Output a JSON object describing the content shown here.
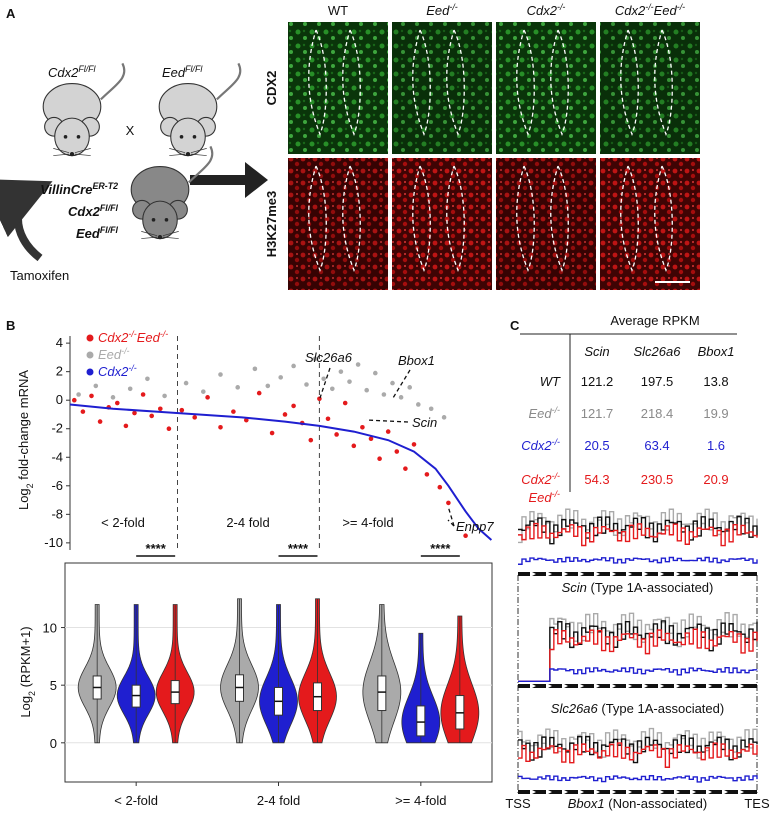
{
  "panel_a": {
    "label": "A",
    "parents": [
      [
        {
          "text": "Cdx2",
          "italic": true
        },
        {
          "text": "Fl/Fl",
          "italic": true,
          "sup": true
        }
      ],
      [
        {
          "text": "Eed",
          "italic": true
        },
        {
          "text": "Fl/Fl",
          "italic": true,
          "sup": true
        }
      ]
    ],
    "cross": "X",
    "offspring": [
      [
        {
          "text": "VillinCre",
          "italic": true
        },
        {
          "text": "ER-T2",
          "italic": true,
          "sup": true
        }
      ],
      [
        {
          "text": "Cdx2",
          "italic": true
        },
        {
          "text": "Fl/Fl",
          "italic": true,
          "sup": true
        }
      ],
      [
        {
          "text": "Eed",
          "italic": true
        },
        {
          "text": "Fl/Fl",
          "italic": true,
          "sup": true
        }
      ]
    ],
    "treatment": "Tamoxifen",
    "columns": [
      [
        {
          "text": "WT"
        }
      ],
      [
        {
          "text": "Eed",
          "italic": true
        },
        {
          "text": "-/-",
          "italic": true,
          "sup": true
        }
      ],
      [
        {
          "text": "Cdx2",
          "italic": true
        },
        {
          "text": "-/-",
          "italic": true,
          "sup": true
        }
      ],
      [
        {
          "text": "Cdx2",
          "italic": true
        },
        {
          "text": "-/-",
          "italic": true,
          "sup": true
        },
        {
          "text": "Eed",
          "italic": true
        },
        {
          "text": "-/-",
          "italic": true,
          "sup": true
        }
      ]
    ],
    "rows": [
      "CDX2",
      "H3K27me3"
    ]
  },
  "panel_b": {
    "label": "B",
    "chart_data": [
      {
        "type": "scatter",
        "ylabel": [
          {
            "text": "Log"
          },
          {
            "text": "2",
            "sub": true
          },
          {
            "text": " fold-change mRNA"
          }
        ],
        "xlim": [
          0,
          100
        ],
        "ylim": [
          -10.5,
          4.5
        ],
        "yticks": [
          4,
          2,
          0,
          -2,
          -4,
          -6,
          -8,
          -10
        ],
        "dividers": [
          25,
          58
        ],
        "regions": [
          "< 2-fold",
          "2-4 fold",
          ">= 4-fold"
        ],
        "annotations": [
          "Slc26a6",
          "Bbox1",
          "Scin",
          "Enpp7"
        ],
        "series": [
          {
            "name": [
              {
                "text": "Cdx2",
                "italic": true
              },
              {
                "text": "-/-",
                "italic": true,
                "sup": true
              },
              {
                "text": "Eed",
                "italic": true
              },
              {
                "text": "-/-",
                "italic": true,
                "sup": true
              }
            ],
            "color": "#e41a1c",
            "mode": "points",
            "x": [
              1,
              3,
              5,
              7,
              9,
              11,
              13,
              15,
              17,
              19,
              21,
              23,
              26,
              29,
              32,
              35,
              38,
              41,
              44,
              47,
              50,
              52,
              54,
              56,
              58,
              60,
              62,
              64,
              66,
              68,
              70,
              72,
              74,
              76,
              78,
              80,
              83,
              86,
              88,
              92
            ],
            "values": [
              0,
              -0.8,
              0.3,
              -1.5,
              -0.5,
              -0.2,
              -1.8,
              -0.9,
              0.4,
              -1.1,
              -0.6,
              -2,
              -0.7,
              -1.2,
              0.2,
              -1.9,
              -0.8,
              -1.4,
              0.5,
              -2.3,
              -1,
              -0.4,
              -1.6,
              -2.8,
              0.1,
              -1.3,
              -2.4,
              -0.2,
              -3.2,
              -1.9,
              -2.7,
              -4.1,
              -2.2,
              -3.6,
              -4.8,
              -3.1,
              -5.2,
              -6.1,
              -7.2,
              -9.5
            ]
          },
          {
            "name": [
              {
                "text": "Eed",
                "italic": true
              },
              {
                "text": "-/-",
                "italic": true,
                "sup": true
              }
            ],
            "color": "#aaaaaa",
            "mode": "points",
            "x": [
              2,
              6,
              10,
              14,
              18,
              22,
              27,
              31,
              35,
              39,
              43,
              46,
              49,
              52,
              55,
              57,
              59,
              61,
              63,
              65,
              67,
              69,
              71,
              73,
              75,
              77,
              79,
              81,
              84,
              87
            ],
            "values": [
              0.4,
              1,
              0.2,
              0.8,
              1.5,
              0.3,
              1.2,
              0.6,
              1.8,
              0.9,
              2.2,
              1,
              1.6,
              2.4,
              1.1,
              2.9,
              1.5,
              0.8,
              2,
              1.3,
              2.5,
              0.7,
              1.9,
              0.4,
              1.2,
              0.2,
              0.9,
              -0.3,
              -0.6,
              -1.2
            ]
          },
          {
            "name": [
              {
                "text": "Cdx2",
                "italic": true
              },
              {
                "text": "-/-",
                "italic": true,
                "sup": true
              }
            ],
            "color": "#1f1fd0",
            "mode": "line",
            "x": [
              0,
              10,
              20,
              30,
              40,
              50,
              58,
              66,
              74,
              80,
              85,
              88,
              92,
              95,
              98
            ],
            "values": [
              -0.3,
              -0.6,
              -0.8,
              -1,
              -1.2,
              -1.5,
              -1.8,
              -2.2,
              -2.8,
              -3.6,
              -4.8,
              -6,
              -7.8,
              -9,
              -9.8
            ]
          }
        ]
      },
      {
        "type": "violin",
        "ylabel": [
          {
            "text": "Log"
          },
          {
            "text": "2",
            "sub": true
          },
          {
            "text": " (RPKM+1)"
          }
        ],
        "ylim": [
          -3.4,
          15.6
        ],
        "yticks": [
          0,
          5,
          10
        ],
        "grid": true,
        "categories": [
          "< 2-fold",
          "2-4 fold",
          ">= 4-fold"
        ],
        "significance": [
          "****",
          "****",
          "****"
        ],
        "series": [
          {
            "color": "#aaaaaa",
            "median": [
              4.8,
              4.8,
              4.4
            ],
            "q1": [
              3.8,
              3.6,
              2.8
            ],
            "q3": [
              5.8,
              5.9,
              5.8
            ],
            "min": [
              0,
              0,
              0
            ],
            "max": [
              12,
              12.5,
              12
            ]
          },
          {
            "color": "#1f1fd0",
            "median": [
              4.1,
              3.6,
              1.8
            ],
            "q1": [
              3.1,
              2.4,
              0.6
            ],
            "q3": [
              5,
              4.8,
              3.2
            ],
            "min": [
              0,
              0,
              0
            ],
            "max": [
              12,
              12,
              9.5
            ]
          },
          {
            "color": "#e41a1c",
            "median": [
              4.4,
              4,
              2.6
            ],
            "q1": [
              3.4,
              2.8,
              1.2
            ],
            "q3": [
              5.4,
              5.2,
              4.1
            ],
            "min": [
              0,
              0,
              0
            ],
            "max": [
              12,
              12.5,
              11
            ]
          }
        ]
      }
    ]
  },
  "panel_c": {
    "label": "C",
    "table": {
      "title": "Average RPKM",
      "columns": [
        "Scin",
        "Slc26a6",
        "Bbox1"
      ],
      "rows": [
        {
          "label": [
            [
              {
                "text": "WT",
                "italic": true
              }
            ]
          ],
          "color": "#111111",
          "values": [
            121.2,
            197.5,
            13.8
          ]
        },
        {
          "label": [
            [
              {
                "text": "Eed",
                "italic": true
              },
              {
                "text": "-/-",
                "italic": true,
                "sup": true
              }
            ]
          ],
          "color": "#8a8a8a",
          "values": [
            121.7,
            218.4,
            19.9
          ]
        },
        {
          "label": [
            [
              {
                "text": "Cdx2",
                "italic": true
              },
              {
                "text": "-/-",
                "italic": true,
                "sup": true
              }
            ]
          ],
          "color": "#1f1fd0",
          "values": [
            20.5,
            63.4,
            1.6
          ]
        },
        {
          "label": [
            [
              {
                "text": "Cdx2",
                "italic": true
              },
              {
                "text": "-/-",
                "italic": true,
                "sup": true
              }
            ],
            [
              {
                "text": "Eed",
                "italic": true
              },
              {
                "text": "-/-",
                "italic": true,
                "sup": true
              }
            ]
          ],
          "color": "#e41a1c",
          "values": [
            54.3,
            230.5,
            20.9
          ]
        }
      ]
    },
    "tracks": [
      [
        {
          "text": "Scin",
          "italic": true
        },
        {
          "text": " (Type 1A-associated)"
        }
      ],
      [
        {
          "text": "Slc26a6",
          "italic": true
        },
        {
          "text": " (Type 1A-associated)"
        }
      ],
      [
        {
          "text": "Bbox1",
          "italic": true
        },
        {
          "text": " (Non-associated)"
        }
      ]
    ],
    "tss": "TSS",
    "tes": "TES"
  }
}
